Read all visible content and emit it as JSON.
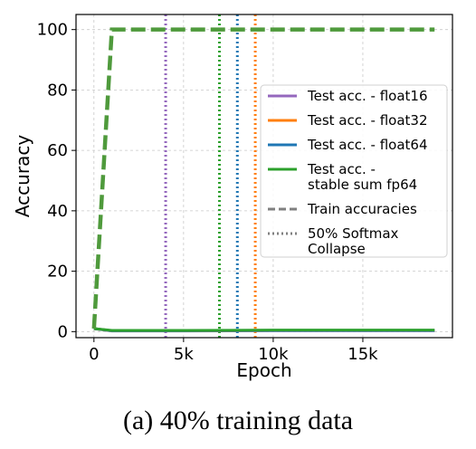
{
  "caption": "(a) 40% training data",
  "chart_data": {
    "type": "line",
    "xlabel": "Epoch",
    "ylabel": "Accuracy",
    "xlim": [
      -1000,
      20000
    ],
    "ylim": [
      -2,
      105
    ],
    "xticks": [
      0,
      5000,
      10000,
      15000
    ],
    "xtick_labels": [
      "0",
      "5k",
      "10k",
      "15k"
    ],
    "yticks": [
      0,
      20,
      40,
      60,
      80,
      100
    ],
    "ytick_labels": [
      "0",
      "20",
      "40",
      "60",
      "80",
      "100"
    ],
    "grid": true,
    "legend_position": "right",
    "series": [
      {
        "name": "Test acc. - float16",
        "color": "#9467bd",
        "style": "solid",
        "x": [
          0,
          1000,
          5000,
          10000,
          15000,
          19000
        ],
        "y": [
          1,
          0.2,
          0.2,
          0.3,
          0.3,
          0.3
        ]
      },
      {
        "name": "Test acc. - float32",
        "color": "#ff7f0e",
        "style": "solid",
        "x": [
          0,
          1000,
          5000,
          10000,
          15000,
          19000
        ],
        "y": [
          1,
          0.3,
          0.3,
          0.4,
          0.4,
          0.4
        ]
      },
      {
        "name": "Test acc. - float64",
        "color": "#1f77b4",
        "style": "solid",
        "x": [
          0,
          1000,
          5000,
          10000,
          15000,
          19000
        ],
        "y": [
          1,
          0.3,
          0.3,
          0.4,
          0.4,
          0.4
        ]
      },
      {
        "name": "Test acc. - stable sum fp64",
        "legend_lines": [
          "Test acc. -",
          "stable sum fp64"
        ],
        "color": "#2ca02c",
        "style": "solid",
        "x": [
          0,
          1000,
          5000,
          10000,
          15000,
          19000
        ],
        "y": [
          1,
          0.4,
          0.4,
          0.5,
          0.5,
          0.5
        ]
      }
    ],
    "train_series": {
      "color": "#4f9a3c",
      "x": [
        0,
        1000,
        19000
      ],
      "y": [
        1,
        100,
        100
      ]
    },
    "collapse_lines": [
      {
        "x": 4000,
        "color": "#9467bd"
      },
      {
        "x": 7000,
        "color": "#2ca02c"
      },
      {
        "x": 8000,
        "color": "#1f77b4"
      },
      {
        "x": 9000,
        "color": "#ff7f0e"
      }
    ],
    "legend_extra": [
      {
        "name": "Train accuracies",
        "legend_lines": [
          "Train accuracies"
        ],
        "color": "#808080",
        "style": "dashed"
      },
      {
        "name": "50% Softmax Collapse",
        "legend_lines": [
          "50% Softmax",
          " Collapse"
        ],
        "color": "#808080",
        "style": "dotted"
      }
    ]
  }
}
